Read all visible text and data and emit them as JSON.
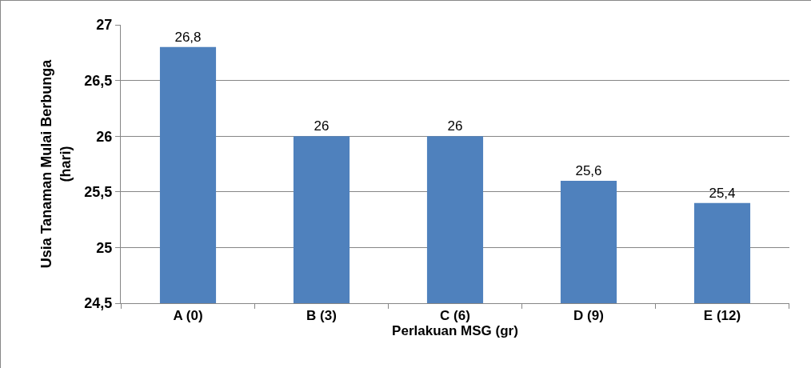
{
  "chart_data": {
    "type": "bar",
    "xlabel": "Perlakuan MSG (gr)",
    "ylabel": "Usia Tanaman Mulai Berbunga\n(hari)",
    "categories": [
      "A (0)",
      "B (3)",
      "C (6)",
      "D (9)",
      "E (12)"
    ],
    "values": [
      26.8,
      26,
      26,
      25.6,
      25.4
    ],
    "value_labels": [
      "26,8",
      "26",
      "26",
      "25,6",
      "25,4"
    ],
    "color": "#4f81bd",
    "ylim": [
      24.5,
      27
    ],
    "yticks": [
      {
        "value": 24.5,
        "label": "24,5"
      },
      {
        "value": 25,
        "label": "25"
      },
      {
        "value": 25.5,
        "label": "25,5"
      },
      {
        "value": 26,
        "label": "26"
      },
      {
        "value": 26.5,
        "label": "26,5"
      },
      {
        "value": 27,
        "label": "27"
      }
    ],
    "grid": "y",
    "legend": false
  }
}
